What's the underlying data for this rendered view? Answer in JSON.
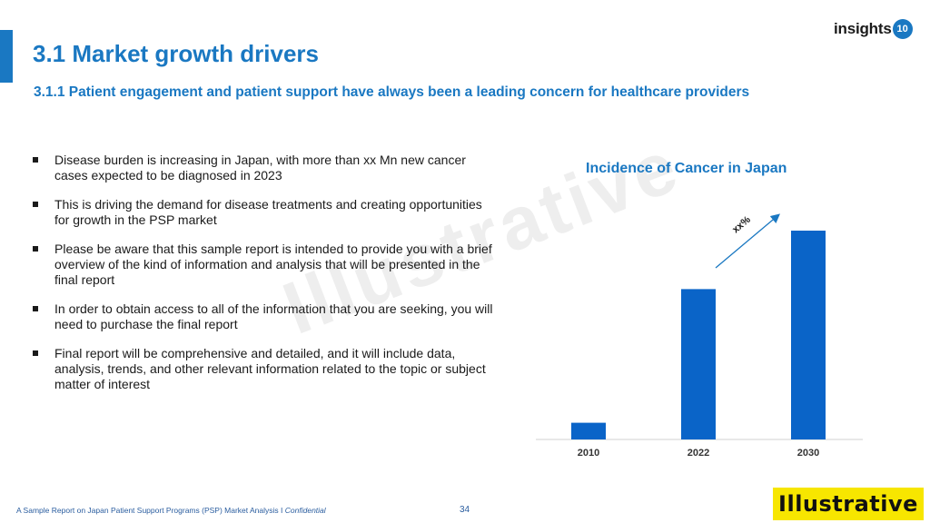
{
  "header": {
    "title": "3.1 Market growth drivers",
    "subtitle": "3.1.1 Patient engagement and patient support have always been a leading concern for healthcare providers",
    "logo_text": "insights",
    "logo_badge": "10"
  },
  "bullets": [
    "Disease burden is increasing in Japan, with more than xx Mn new cancer cases expected to be diagnosed in 2023",
    "This is driving the demand for disease treatments and creating opportunities for growth in the PSP market",
    "Please be aware that this sample report is intended to provide you with a brief overview of the kind of information and analysis that will be presented in the final report",
    "In order to obtain access to all of the information that you are seeking, you will need to purchase the final report",
    "Final report will be comprehensive and detailed, and it will include data, analysis, trends, and other relevant information related to the topic or subject matter of interest"
  ],
  "watermark": "Illustrative",
  "chart_data": {
    "type": "bar",
    "title": "Incidence of Cancer in Japan",
    "categories": [
      "2010",
      "2022",
      "2030"
    ],
    "values": [
      8,
      72,
      100
    ],
    "ylim": [
      0,
      100
    ],
    "xlabel": "",
    "ylabel": "",
    "grid": false,
    "legend": "none",
    "bar_color": "#0a64c8",
    "annotation": "xx%"
  },
  "footer": {
    "text": "A Sample Report on Japan Patient Support Programs (PSP) Market Analysis I ",
    "confidential": "Confidential",
    "page_number": "34"
  },
  "stamp": "Illustrative",
  "colors": {
    "accent": "#1a78c2",
    "bar": "#0a64c8",
    "stamp_bg": "#f7e600"
  }
}
